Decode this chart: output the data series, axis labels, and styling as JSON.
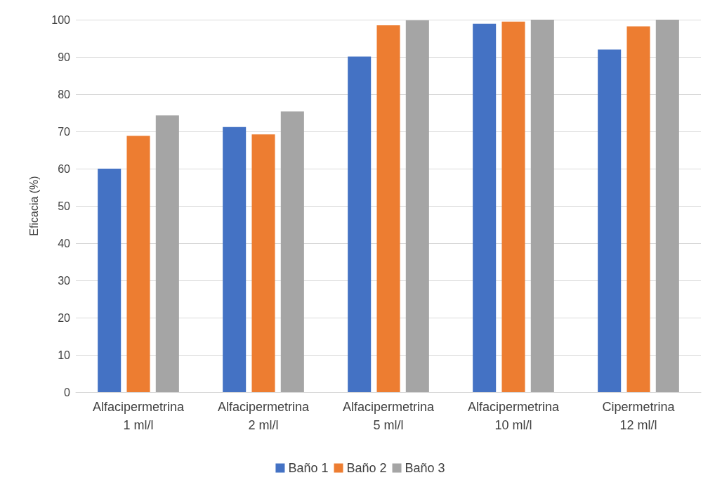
{
  "chart_data": {
    "type": "bar",
    "ylabel": "Eficacia (%)",
    "categories": [
      "Alfacipermetrina 1 ml/l",
      "Alfacipermetrina 2 ml/l",
      "Alfacipermetrina 5 ml/l",
      "Alfacipermetrina 10 ml/l",
      "Cipermetrina 12 ml/l"
    ],
    "series": [
      {
        "name": "Baño 1",
        "color": "#4472c4",
        "values": [
          60.0,
          71.2,
          90.1,
          98.9,
          92.0
        ]
      },
      {
        "name": "Baño 2",
        "color": "#ed7d31",
        "values": [
          68.8,
          69.2,
          98.5,
          99.5,
          98.2
        ]
      },
      {
        "name": "Baño 3",
        "color": "#a5a5a5",
        "values": [
          74.3,
          75.4,
          99.8,
          100,
          100
        ]
      }
    ],
    "ylim": [
      0,
      100
    ],
    "yticks": [
      0,
      10,
      20,
      30,
      40,
      50,
      60,
      70,
      80,
      90,
      100
    ],
    "grid": "y",
    "legend": "bottom"
  }
}
